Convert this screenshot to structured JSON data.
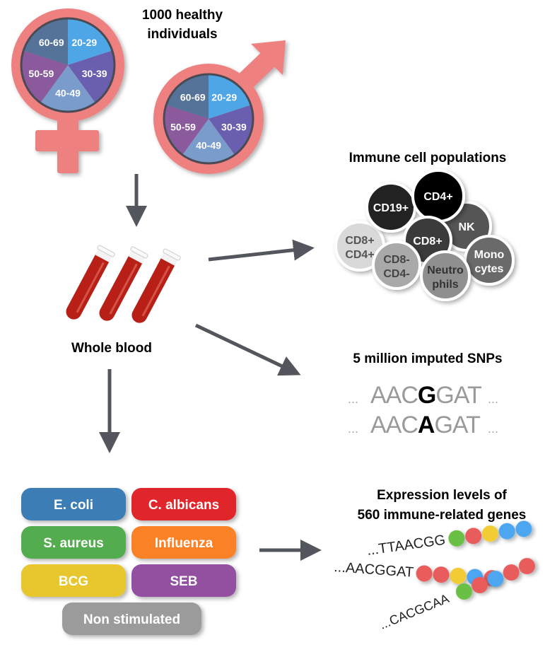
{
  "cohort": {
    "title_line1": "1000 healthy",
    "title_line2": "individuals",
    "age_groups": [
      {
        "label": "20-29",
        "color": "#4ea6e6"
      },
      {
        "label": "30-39",
        "color": "#6a5fae"
      },
      {
        "label": "40-49",
        "color": "#7a9ccc"
      },
      {
        "label": "50-59",
        "color": "#8a5a9c"
      },
      {
        "label": "60-69",
        "color": "#557399"
      }
    ],
    "symbol_color": "#ee8080"
  },
  "blood": {
    "label": "Whole blood",
    "color": "#b81f16"
  },
  "immune": {
    "title": "Immune cell populations",
    "cells": [
      {
        "label": "CD8+",
        "label2": "CD4+",
        "color": "#d9d9d9",
        "text": "#555555"
      },
      {
        "label": "CD19+",
        "label2": "",
        "color": "#222222",
        "text": "#ffffff"
      },
      {
        "label": "NK",
        "label2": "",
        "color": "#555555",
        "text": "#ffffff"
      },
      {
        "label": "CD4+",
        "label2": "",
        "color": "#050505",
        "text": "#ffffff"
      },
      {
        "label": "CD8+",
        "label2": "",
        "color": "#3a3a3a",
        "text": "#ffffff"
      },
      {
        "label": "CD8-",
        "label2": "CD4-",
        "color": "#a9a9a9",
        "text": "#444444"
      },
      {
        "label": "Mono",
        "label2": "cytes",
        "color": "#6b6b6b",
        "text": "#ffffff"
      },
      {
        "label": "Neutro",
        "label2": "phils",
        "color": "#8f8f8f",
        "text": "#333333"
      }
    ]
  },
  "snps": {
    "title": "5 million imputed SNPs",
    "seq1": {
      "pre": "AAC",
      "variant": "G",
      "post": "GAT"
    },
    "seq2": {
      "pre": "AAC",
      "variant": "A",
      "post": "GAT"
    },
    "ellipsis": "..."
  },
  "expression": {
    "title_line1": "Expression levels of",
    "title_line2": "560 immune-related genes",
    "genes": [
      {
        "seq": "...TTAACGG",
        "beads": [
          "#6abf45",
          "#e85c5c",
          "#f2cc35",
          "#4ea6f0",
          "#4ea6f0"
        ]
      },
      {
        "seq": "...AACGGAT",
        "beads": [
          "#e85c5c",
          "#e85c5c",
          "#f2cc35",
          "#4ea6f0",
          "#e85c5c"
        ]
      },
      {
        "seq": "...CACGCAA",
        "beads": [
          "#6abf45",
          "#e85c5c",
          "#4ea6f0",
          "#e85c5c",
          "#e85c5c"
        ]
      }
    ]
  },
  "stimuli": [
    {
      "label": "E. coli",
      "color": "#3a7db4"
    },
    {
      "label": "C. albicans",
      "color": "#e0262a"
    },
    {
      "label": "S. aureus",
      "color": "#52ad50"
    },
    {
      "label": "Influenza",
      "color": "#fb8125"
    },
    {
      "label": "BCG",
      "color": "#e8c72d"
    },
    {
      "label": "SEB",
      "color": "#934fa0"
    },
    {
      "label": "Non stimulated",
      "color": "#9b9b9b"
    }
  ],
  "arrow_color": "#53565c"
}
